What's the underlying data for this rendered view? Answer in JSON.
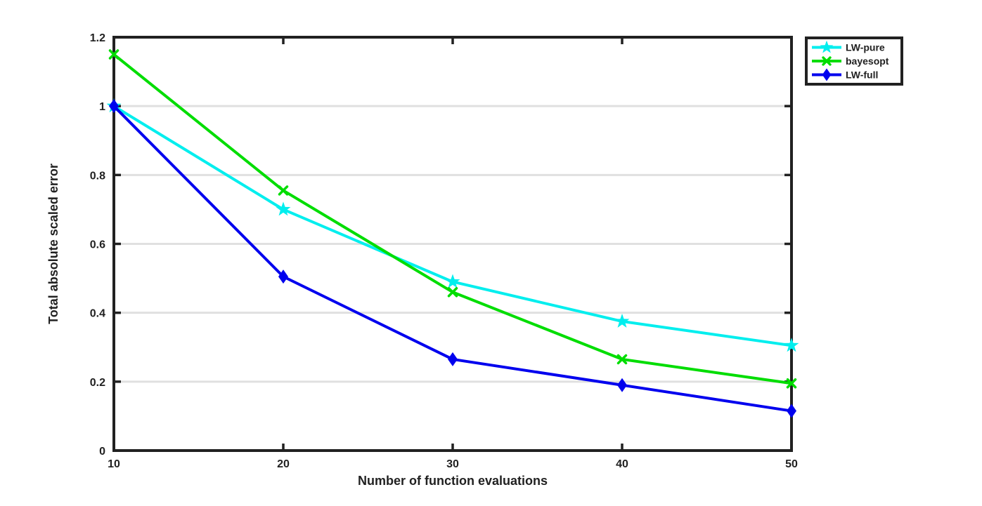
{
  "figure": {
    "background_color": "#ffffff",
    "axis_color": "#212121",
    "grid_color": "#e0e0e0",
    "text_color": "#212121"
  },
  "chart_data": {
    "type": "line",
    "title": "",
    "xlabel": "Number of function evaluations",
    "ylabel": "Total absolute scaled error",
    "xlim": [
      10,
      50
    ],
    "ylim": [
      0,
      1.2
    ],
    "x_ticks": [
      10,
      20,
      30,
      40,
      50
    ],
    "x_tick_labels": [
      "10",
      "20",
      "30",
      "40",
      "50"
    ],
    "y_ticks": [
      0,
      0.2,
      0.4,
      0.6,
      0.8,
      1,
      1.2
    ],
    "y_tick_labels": [
      "0",
      "0.2",
      "0.4",
      "0.6",
      "0.8",
      "1",
      "1.2"
    ],
    "grid": "horizontal",
    "x": [
      10,
      20,
      30,
      40,
      50
    ],
    "series": [
      {
        "name": "LW-pure",
        "color": "#00eeee",
        "marker": "star",
        "values": [
          1.0,
          0.7,
          0.49,
          0.375,
          0.305
        ]
      },
      {
        "name": "bayesopt",
        "color": "#00dd00",
        "marker": "x",
        "values": [
          1.15,
          0.755,
          0.46,
          0.265,
          0.195
        ]
      },
      {
        "name": "LW-full",
        "color": "#0000ee",
        "marker": "diamond",
        "values": [
          1.0,
          0.505,
          0.265,
          0.19,
          0.115
        ]
      }
    ],
    "legend": {
      "position": "outside-top-right",
      "entries": [
        "LW-pure",
        "bayesopt",
        "LW-full"
      ]
    }
  }
}
